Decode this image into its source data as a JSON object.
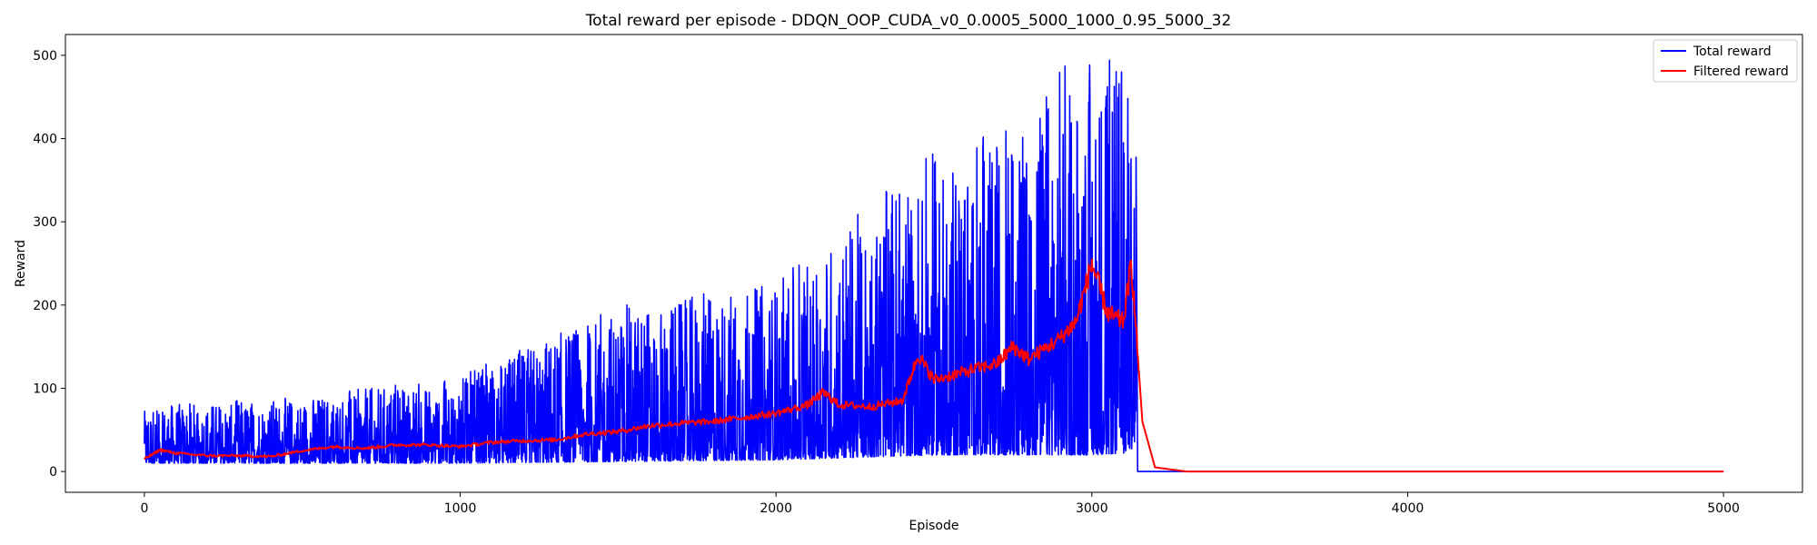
{
  "chart_data": {
    "type": "line",
    "title": "Total reward per episode - DDQN_OOP_CUDA_v0_0.0005_5000_1000_0.95_5000_32",
    "xlabel": "Episode",
    "ylabel": "Reward",
    "xlim": [
      -250,
      5250
    ],
    "ylim": [
      -25,
      525
    ],
    "xticks": [
      0,
      1000,
      2000,
      3000,
      4000,
      5000
    ],
    "yticks": [
      0,
      100,
      200,
      300,
      400,
      500
    ],
    "grid": false,
    "legend_position": "top-right",
    "total_episodes": 5000,
    "series": [
      {
        "name": "Total reward",
        "color": "#0000ff",
        "envelope": {
          "x": [
            0,
            500,
            1000,
            1500,
            2000,
            2500,
            2800,
            2900,
            3000,
            3100,
            3140
          ],
          "low": [
            10,
            10,
            10,
            12,
            14,
            20,
            20,
            20,
            20,
            22,
            30
          ],
          "high": [
            80,
            90,
            115,
            200,
            230,
            385,
            420,
            500,
            500,
            500,
            500
          ]
        },
        "tail_value": 0,
        "tail_start": 3145
      },
      {
        "name": "Filtered reward",
        "color": "#ff0000",
        "points": [
          [
            0,
            15
          ],
          [
            50,
            26
          ],
          [
            100,
            22
          ],
          [
            200,
            19
          ],
          [
            300,
            19
          ],
          [
            400,
            18
          ],
          [
            500,
            25
          ],
          [
            600,
            30
          ],
          [
            700,
            28
          ],
          [
            800,
            32
          ],
          [
            900,
            32
          ],
          [
            1000,
            30
          ],
          [
            1100,
            35
          ],
          [
            1200,
            37
          ],
          [
            1300,
            38
          ],
          [
            1400,
            45
          ],
          [
            1500,
            48
          ],
          [
            1600,
            55
          ],
          [
            1700,
            58
          ],
          [
            1800,
            60
          ],
          [
            1900,
            65
          ],
          [
            2000,
            70
          ],
          [
            2100,
            80
          ],
          [
            2150,
            95
          ],
          [
            2200,
            80
          ],
          [
            2300,
            78
          ],
          [
            2400,
            85
          ],
          [
            2450,
            140
          ],
          [
            2500,
            110
          ],
          [
            2600,
            120
          ],
          [
            2700,
            130
          ],
          [
            2750,
            150
          ],
          [
            2800,
            135
          ],
          [
            2900,
            160
          ],
          [
            2950,
            180
          ],
          [
            3000,
            250
          ],
          [
            3050,
            190
          ],
          [
            3100,
            180
          ],
          [
            3125,
            250
          ],
          [
            3140,
            170
          ],
          [
            3160,
            60
          ],
          [
            3200,
            5
          ],
          [
            3300,
            0
          ],
          [
            5000,
            0
          ]
        ]
      }
    ]
  }
}
